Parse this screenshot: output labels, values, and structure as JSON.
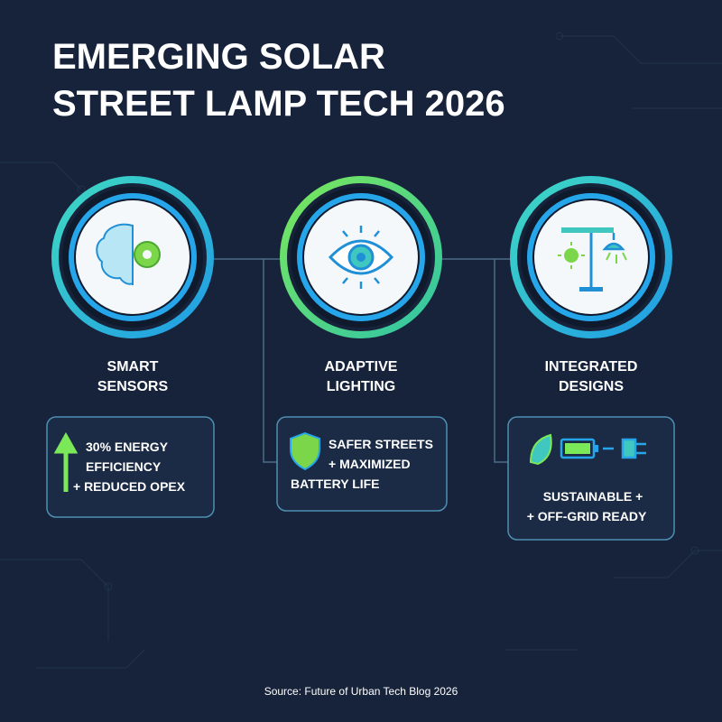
{
  "header": {
    "title_lines": [
      "EMERGING SOLAR",
      "STREET LAMP TECH 2026"
    ]
  },
  "columns": [
    {
      "label_lines": [
        "SMART",
        "SENSORS"
      ],
      "detail_lines": [
        "30% ENERGY",
        "EFFICIENCY",
        "+ REDUCED OPEX"
      ]
    },
    {
      "label_lines": [
        "ADAPTIVE",
        "LIGHTING"
      ],
      "detail_lines": [
        "SAFER STREETS",
        "+ MAXIMIZED",
        "BATTERY LIFE"
      ]
    },
    {
      "label_lines": [
        "INTEGRATED",
        "DESIGNS"
      ],
      "detail_lines": [
        "SUSTAINABLE +",
        "+ OFF-GRID READY"
      ]
    }
  ],
  "footer": {
    "source": "Source: Future of Urban Tech Blog 2026"
  }
}
